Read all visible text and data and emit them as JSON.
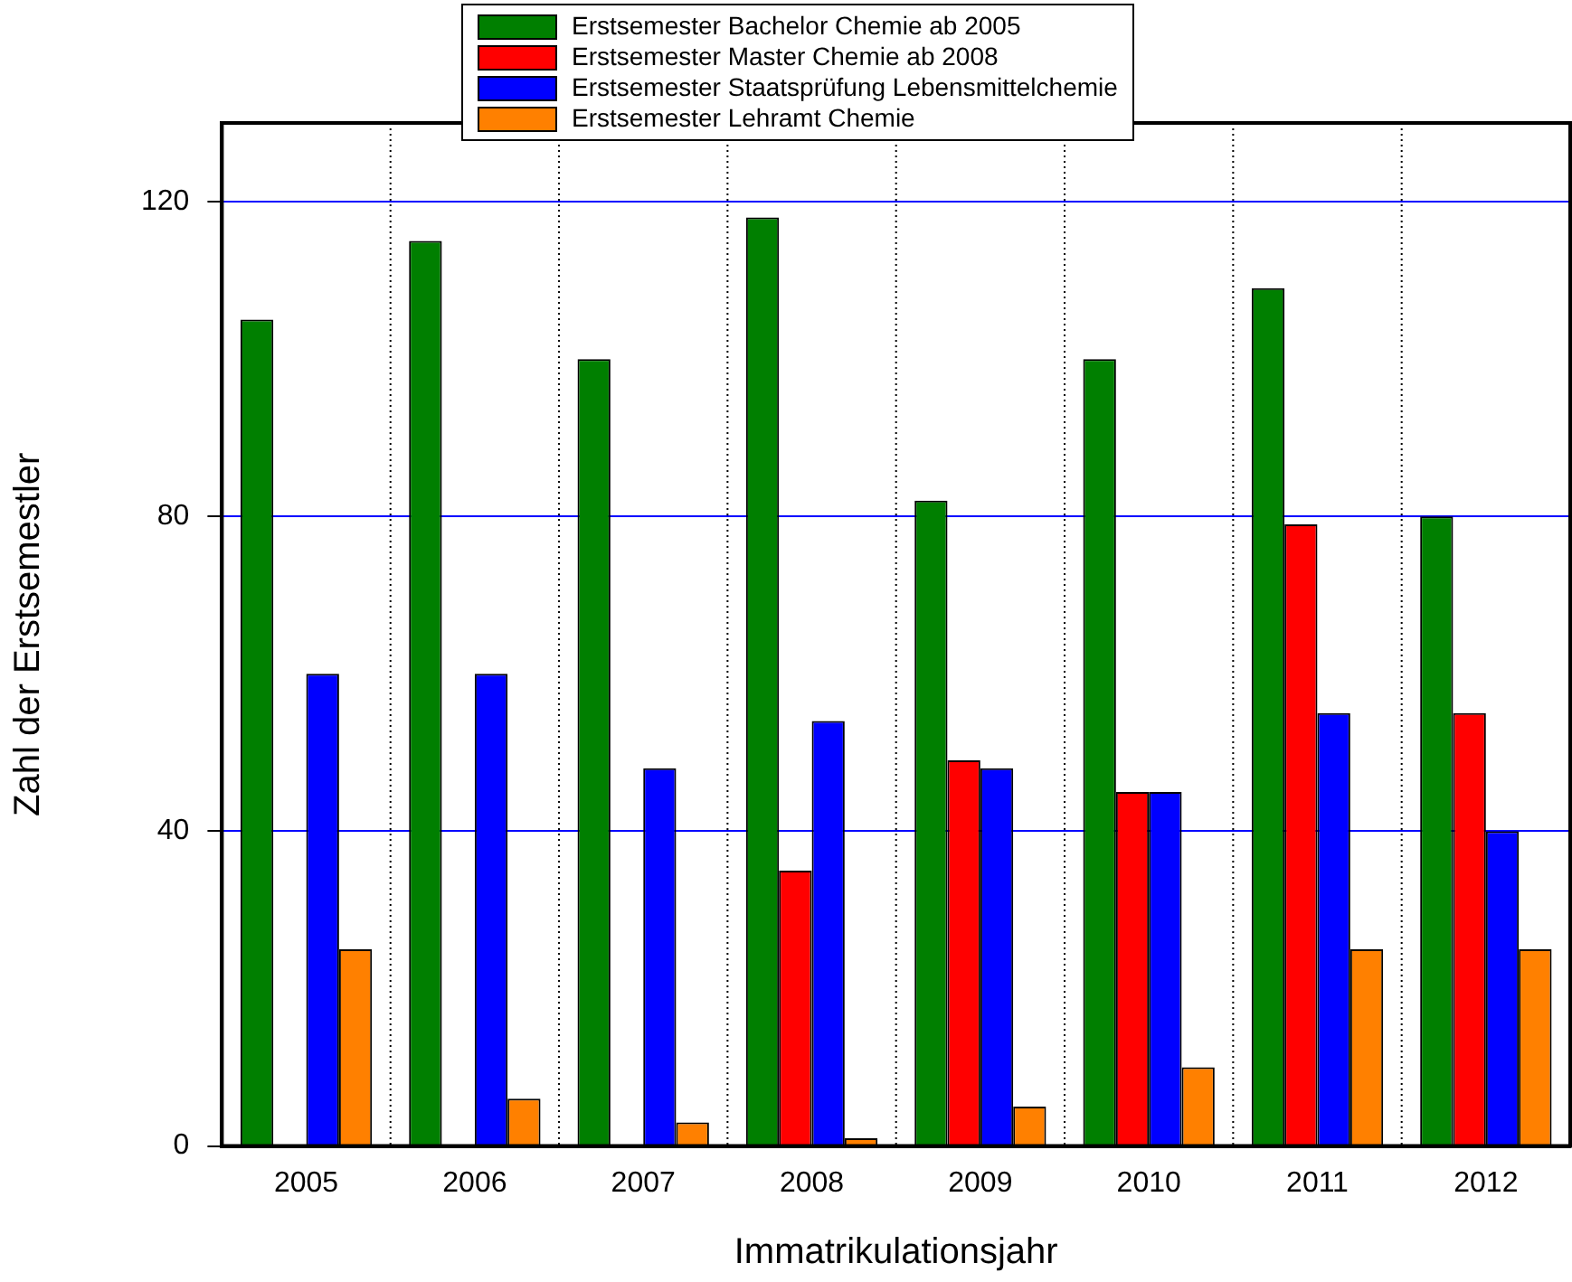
{
  "chart_data": {
    "type": "bar",
    "categories": [
      "2005",
      "2006",
      "2007",
      "2008",
      "2009",
      "2010",
      "2011",
      "2012"
    ],
    "series": [
      {
        "name": "Erstsemester Bachelor Chemie ab 2005",
        "color": "#007f00",
        "values": [
          105,
          115,
          100,
          118,
          82,
          100,
          109,
          80
        ]
      },
      {
        "name": "Erstsemester Master Chemie ab 2008",
        "color": "#ff0000",
        "values": [
          null,
          null,
          null,
          35,
          49,
          45,
          79,
          55
        ]
      },
      {
        "name": "Erstsemester Staatsprüfung Lebensmittelchemie",
        "color": "#0000ff",
        "values": [
          60,
          60,
          48,
          54,
          48,
          45,
          55,
          40
        ]
      },
      {
        "name": "Erstsemester Lehramt Chemie",
        "color": "#ff8000",
        "values": [
          25,
          6,
          3,
          1,
          5,
          10,
          25,
          25
        ]
      }
    ],
    "xlabel": "Immatrikulationsjahr",
    "ylabel": "Zahl der Erstsemestler",
    "ylim": [
      0,
      130
    ],
    "yticks": [
      0,
      40,
      80,
      120
    ],
    "grid": true,
    "legend": "top"
  }
}
